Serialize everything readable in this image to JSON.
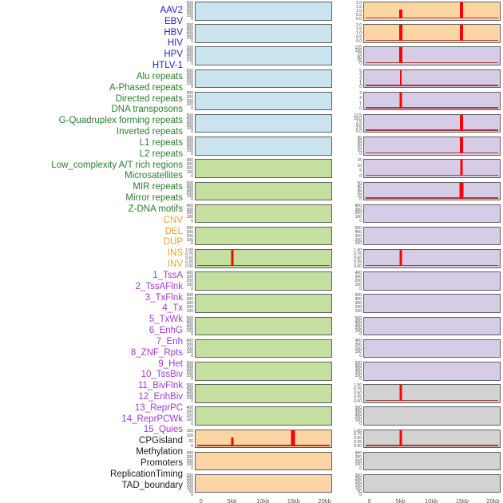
{
  "colors": {
    "label_groups": {
      "virus": "#2121cc",
      "repeat": "#2a7e2a",
      "sv": "#f0a01e",
      "chromatin": "#a437d4",
      "other": "#1a1a1a"
    },
    "fills": {
      "blue": "#c9e4ef",
      "green": "#c5dfa1",
      "orange": "#fcd5a4",
      "purple": "#d6cce6",
      "gray": "#d2d2d2"
    },
    "spike": "#ff0000",
    "baseline": "#a63a3a",
    "box_border": "#5f5f5f",
    "tick_text": "#4a4a4a"
  },
  "chart_data": {
    "type": "line",
    "title": "",
    "layout": "44 feature density panels in 2 columns of 22; shared x-axis 0-20kb; legend off; grid off",
    "x_axis": {
      "ticks": [
        {
          "label": "0",
          "kb": 0
        },
        {
          "label": "5kb",
          "kb": 5
        },
        {
          "label": "10kb",
          "kb": 10
        },
        {
          "label": "15kb",
          "kb": 15
        },
        {
          "label": "20kb",
          "kb": 20
        }
      ],
      "range_kb": [
        0,
        20
      ]
    },
    "panels": [
      {
        "name": "AAV2",
        "group": "virus",
        "column": 1,
        "row": 1,
        "fill": "blue",
        "ylim": [
          0,
          500
        ],
        "yticks": [
          "500",
          "400",
          "300",
          "200",
          "100",
          "0"
        ],
        "baseline": false,
        "spikes": []
      },
      {
        "name": "EBV",
        "group": "virus",
        "column": 1,
        "row": 2,
        "fill": "blue",
        "ylim": [
          0,
          500
        ],
        "yticks": [
          "500",
          "400",
          "300",
          "200",
          "100",
          "0"
        ],
        "baseline": false,
        "spikes": []
      },
      {
        "name": "HBV",
        "group": "virus",
        "column": 1,
        "row": 3,
        "fill": "blue",
        "ylim": [
          0,
          500
        ],
        "yticks": [
          "500",
          "400",
          "300",
          "200",
          "100",
          "0"
        ],
        "baseline": false,
        "spikes": []
      },
      {
        "name": "HIV",
        "group": "virus",
        "column": 1,
        "row": 4,
        "fill": "blue",
        "ylim": [
          0,
          500
        ],
        "yticks": [
          "500",
          "400",
          "300",
          "200",
          "100",
          "0"
        ],
        "baseline": false,
        "spikes": []
      },
      {
        "name": "HPV",
        "group": "virus",
        "column": 1,
        "row": 5,
        "fill": "blue",
        "ylim": [
          0,
          400
        ],
        "yticks": [
          "400",
          "300",
          "200",
          "100",
          "0"
        ],
        "baseline": false,
        "spikes": []
      },
      {
        "name": "HTLV-1",
        "group": "virus",
        "column": 1,
        "row": 6,
        "fill": "blue",
        "ylim": [
          0,
          500
        ],
        "yticks": [
          "500",
          "400",
          "300",
          "200",
          "100",
          "0"
        ],
        "baseline": false,
        "spikes": []
      },
      {
        "name": "Alu repeats",
        "group": "repeat",
        "column": 1,
        "row": 7,
        "fill": "blue",
        "ylim": [
          0,
          500
        ],
        "yticks": [
          "500",
          "400",
          "300",
          "200",
          "100",
          "0"
        ],
        "baseline": false,
        "spikes": []
      },
      {
        "name": "A-Phased repeats",
        "group": "repeat",
        "column": 1,
        "row": 8,
        "fill": "green",
        "ylim": [
          0,
          400
        ],
        "yticks": [
          "400",
          "300",
          "200",
          "100",
          "0"
        ],
        "baseline": false,
        "spikes": []
      },
      {
        "name": "Directed repeats",
        "group": "repeat",
        "column": 1,
        "row": 9,
        "fill": "green",
        "ylim": [
          0,
          500
        ],
        "yticks": [
          "500",
          "400",
          "300",
          "200",
          "100",
          "0"
        ],
        "baseline": false,
        "spikes": []
      },
      {
        "name": "DNA transposons",
        "group": "repeat",
        "column": 1,
        "row": 10,
        "fill": "green",
        "ylim": [
          0,
          400
        ],
        "yticks": [
          "400",
          "300",
          "200",
          "100",
          "0"
        ],
        "baseline": false,
        "spikes": []
      },
      {
        "name": "G-Quadruplex forming repeats",
        "group": "repeat",
        "column": 1,
        "row": 11,
        "fill": "green",
        "ylim": [
          0,
          400
        ],
        "yticks": [
          "400",
          "300",
          "200",
          "100",
          "0"
        ],
        "baseline": false,
        "spikes": []
      },
      {
        "name": "Inverted repeats",
        "group": "repeat",
        "column": 1,
        "row": 12,
        "fill": "green",
        "ylim": [
          0,
          1
        ],
        "yticks": [
          "1.00",
          "0.75",
          "0.50",
          "0.25",
          "0.00"
        ],
        "baseline": true,
        "spikes": [
          {
            "x_kb": 5,
            "value": 1.0,
            "frac": 1.0,
            "w": 3
          }
        ]
      },
      {
        "name": "L1 repeats",
        "group": "repeat",
        "column": 1,
        "row": 13,
        "fill": "green",
        "ylim": [
          0,
          400
        ],
        "yticks": [
          "400",
          "300",
          "200",
          "100",
          "0"
        ],
        "baseline": false,
        "spikes": []
      },
      {
        "name": "L2 repeats",
        "group": "repeat",
        "column": 1,
        "row": 14,
        "fill": "green",
        "ylim": [
          0,
          500
        ],
        "yticks": [
          "500",
          "400",
          "300",
          "200",
          "100"
        ],
        "baseline": false,
        "spikes": []
      },
      {
        "name": "Low_complexity A/T rich regions",
        "group": "repeat",
        "column": 1,
        "row": 15,
        "fill": "green",
        "ylim": [
          0,
          500
        ],
        "yticks": [
          "500",
          "400",
          "300",
          "200",
          "100",
          "0"
        ],
        "baseline": false,
        "spikes": []
      },
      {
        "name": "Microsatellites",
        "group": "repeat",
        "column": 1,
        "row": 16,
        "fill": "green",
        "ylim": [
          0,
          400
        ],
        "yticks": [
          "400",
          "300",
          "200",
          "100",
          "0"
        ],
        "baseline": false,
        "spikes": []
      },
      {
        "name": "MIR repeats",
        "group": "repeat",
        "column": 1,
        "row": 17,
        "fill": "green",
        "ylim": [
          0,
          500
        ],
        "yticks": [
          "500",
          "400",
          "300",
          "200",
          "100",
          "0"
        ],
        "baseline": false,
        "spikes": []
      },
      {
        "name": "Mirror repeats",
        "group": "repeat",
        "column": 1,
        "row": 18,
        "fill": "green",
        "ylim": [
          0,
          500
        ],
        "yticks": [
          "500",
          "400",
          "300",
          "200",
          "100",
          "0"
        ],
        "baseline": false,
        "spikes": []
      },
      {
        "name": "Z-DNA motifs",
        "group": "repeat",
        "column": 1,
        "row": 19,
        "fill": "green",
        "ylim": [
          0,
          400
        ],
        "yticks": [
          "400",
          "300",
          "200",
          "100",
          "0"
        ],
        "baseline": false,
        "spikes": []
      },
      {
        "name": "CNV",
        "group": "sv",
        "column": 1,
        "row": 20,
        "fill": "orange",
        "ylim": [
          0,
          150
        ],
        "yticks": [
          "150",
          "100",
          "50",
          "0"
        ],
        "baseline": true,
        "spikes": [
          {
            "x_kb": 5,
            "value": 75,
            "frac": 0.5,
            "w": 3
          },
          {
            "x_kb": 15,
            "value": 150,
            "frac": 1.0,
            "w": 5
          }
        ]
      },
      {
        "name": "DEL",
        "group": "sv",
        "column": 1,
        "row": 21,
        "fill": "orange",
        "ylim": [
          0,
          400
        ],
        "yticks": [
          "400",
          "300",
          "200",
          "100",
          "0"
        ],
        "baseline": false,
        "spikes": []
      },
      {
        "name": "DUP",
        "group": "sv",
        "column": 1,
        "row": 22,
        "fill": "orange",
        "ylim": [
          0,
          300
        ],
        "yticks": [
          "300",
          "250",
          "200",
          "150",
          "100",
          "50",
          "0"
        ],
        "baseline": false,
        "spikes": []
      },
      {
        "name": "INS",
        "group": "sv",
        "column": 2,
        "row": 1,
        "fill": "orange",
        "ylim": [
          0,
          2
        ],
        "yticks": [
          "2.0",
          "1.5",
          "1.0",
          "0.5",
          "0.0"
        ],
        "baseline": true,
        "spikes": [
          {
            "x_kb": 5,
            "value": 1.0,
            "frac": 0.5,
            "w": 4
          },
          {
            "x_kb": 15,
            "value": 2.0,
            "frac": 1.0,
            "w": 4
          }
        ]
      },
      {
        "name": "INV",
        "group": "sv",
        "column": 2,
        "row": 2,
        "fill": "orange",
        "ylim": [
          0,
          2
        ],
        "yticks": [
          "2.0",
          "1.5",
          "1.0",
          "0.5",
          "0.0"
        ],
        "baseline": true,
        "spikes": [
          {
            "x_kb": 5,
            "value": 2.0,
            "frac": 1.0,
            "w": 4
          },
          {
            "x_kb": 15,
            "value": 2.0,
            "frac": 1.0,
            "w": 4
          }
        ]
      },
      {
        "name": "1_TssA",
        "group": "chromatin",
        "column": 2,
        "row": 3,
        "fill": "purple",
        "ylim": [
          0,
          125
        ],
        "yticks": [
          "125",
          "100",
          "75",
          "50",
          "25",
          "0"
        ],
        "baseline": true,
        "spikes": [
          {
            "x_kb": 5,
            "value": 125,
            "frac": 1.0,
            "w": 4
          }
        ]
      },
      {
        "name": "2_TssAFlnk",
        "group": "chromatin",
        "column": 2,
        "row": 4,
        "fill": "purple",
        "ylim": [
          0,
          5
        ],
        "yticks": [
          "5",
          "4",
          "3",
          "2",
          "1",
          "0"
        ],
        "baseline": true,
        "spikes": [
          {
            "x_kb": 5,
            "value": 5,
            "frac": 1.0,
            "w": 2
          }
        ]
      },
      {
        "name": "3_TxFlnk",
        "group": "chromatin",
        "column": 2,
        "row": 5,
        "fill": "purple",
        "ylim": [
          0,
          3
        ],
        "yticks": [
          "3",
          "2",
          "1",
          "0"
        ],
        "baseline": true,
        "spikes": [
          {
            "x_kb": 5,
            "value": 3,
            "frac": 1.0,
            "w": 3
          }
        ]
      },
      {
        "name": "4_Tx",
        "group": "chromatin",
        "column": 2,
        "row": 6,
        "fill": "purple",
        "ylim": [
          0,
          12.5
        ],
        "yticks": [
          "12.5",
          "10.0",
          "7.5",
          "5.0",
          "2.5",
          "0.0"
        ],
        "baseline": true,
        "spikes": [
          {
            "x_kb": 15,
            "value": 12.5,
            "frac": 1.0,
            "w": 4
          }
        ]
      },
      {
        "name": "5_TxWk",
        "group": "chromatin",
        "column": 2,
        "row": 7,
        "fill": "purple",
        "ylim": [
          0,
          50
        ],
        "yticks": [
          "50",
          "40",
          "30",
          "20",
          "10",
          "0"
        ],
        "baseline": true,
        "spikes": [
          {
            "x_kb": 15,
            "value": 50,
            "frac": 1.0,
            "w": 4
          }
        ]
      },
      {
        "name": "6_EnhG",
        "group": "chromatin",
        "column": 2,
        "row": 8,
        "fill": "purple",
        "ylim": [
          0,
          15
        ],
        "yticks": [
          "15",
          "10",
          "5",
          "0"
        ],
        "baseline": true,
        "spikes": [
          {
            "x_kb": 15,
            "value": 15,
            "frac": 1.0,
            "w": 3
          }
        ]
      },
      {
        "name": "7_Enh",
        "group": "chromatin",
        "column": 2,
        "row": 9,
        "fill": "purple",
        "ylim": [
          0,
          50
        ],
        "yticks": [
          "50",
          "40",
          "30",
          "20",
          "10",
          "0"
        ],
        "baseline": true,
        "spikes": [
          {
            "x_kb": 15,
            "value": 50,
            "frac": 1.0,
            "w": 5
          }
        ]
      },
      {
        "name": "8_ZNF_Rpts",
        "group": "chromatin",
        "column": 2,
        "row": 10,
        "fill": "purple",
        "ylim": [
          0,
          400
        ],
        "yticks": [
          "400",
          "300",
          "200",
          "100",
          "0"
        ],
        "baseline": false,
        "spikes": []
      },
      {
        "name": "9_Het",
        "group": "chromatin",
        "column": 2,
        "row": 11,
        "fill": "purple",
        "ylim": [
          0,
          500
        ],
        "yticks": [
          "500",
          "400",
          "300",
          "200",
          "100"
        ],
        "baseline": false,
        "spikes": []
      },
      {
        "name": "10_TssBiv",
        "group": "chromatin",
        "column": 2,
        "row": 12,
        "fill": "purple",
        "ylim": [
          0,
          1
        ],
        "yticks": [
          "1.00",
          "0.75",
          "0.50",
          "0.25",
          "0.00"
        ],
        "baseline": true,
        "spikes": [
          {
            "x_kb": 5,
            "value": 1.0,
            "frac": 1.0,
            "w": 3
          }
        ]
      },
      {
        "name": "11_BivFlnk",
        "group": "chromatin",
        "column": 2,
        "row": 13,
        "fill": "purple",
        "ylim": [
          0,
          400
        ],
        "yticks": [
          "400",
          "300",
          "200",
          "100",
          "0"
        ],
        "baseline": false,
        "spikes": []
      },
      {
        "name": "12_EnhBiv",
        "group": "chromatin",
        "column": 2,
        "row": 14,
        "fill": "purple",
        "ylim": [
          0,
          500
        ],
        "yticks": [
          "500",
          "400",
          "300",
          "200",
          "100"
        ],
        "baseline": false,
        "spikes": []
      },
      {
        "name": "13_ReprPC",
        "group": "chromatin",
        "column": 2,
        "row": 15,
        "fill": "purple",
        "ylim": [
          0,
          500
        ],
        "yticks": [
          "500",
          "400",
          "300",
          "200",
          "100",
          "0"
        ],
        "baseline": false,
        "spikes": []
      },
      {
        "name": "14_ReprPCWk",
        "group": "chromatin",
        "column": 2,
        "row": 16,
        "fill": "purple",
        "ylim": [
          0,
          400
        ],
        "yticks": [
          "400",
          "300",
          "200",
          "100",
          "0"
        ],
        "baseline": false,
        "spikes": []
      },
      {
        "name": "15_Quies",
        "group": "chromatin",
        "column": 2,
        "row": 17,
        "fill": "purple",
        "ylim": [
          0,
          500
        ],
        "yticks": [
          "500",
          "400",
          "300",
          "200",
          "100",
          "0"
        ],
        "baseline": false,
        "spikes": []
      },
      {
        "name": "CPGisland",
        "group": "other",
        "column": 2,
        "row": 18,
        "fill": "gray",
        "ylim": [
          0,
          1
        ],
        "yticks": [
          "1.00",
          "0.75",
          "0.50",
          "0.25",
          "0.00"
        ],
        "baseline": true,
        "spikes": [
          {
            "x_kb": 5,
            "value": 1.0,
            "frac": 1.0,
            "w": 3
          }
        ]
      },
      {
        "name": "Methylation",
        "group": "other",
        "column": 2,
        "row": 19,
        "fill": "gray",
        "ylim": [
          0,
          500
        ],
        "yticks": [
          "500",
          "400",
          "300",
          "200",
          "100",
          "0"
        ],
        "baseline": false,
        "spikes": []
      },
      {
        "name": "Promoters",
        "group": "other",
        "column": 2,
        "row": 20,
        "fill": "gray",
        "ylim": [
          0,
          1
        ],
        "yticks": [
          "1.00",
          "0.75",
          "0.50",
          "0.25",
          "0.00"
        ],
        "baseline": true,
        "spikes": [
          {
            "x_kb": 5,
            "value": 1.0,
            "frac": 1.0,
            "w": 3
          }
        ]
      },
      {
        "name": "ReplicationTiming",
        "group": "other",
        "column": 2,
        "row": 21,
        "fill": "gray",
        "ylim": [
          0,
          400
        ],
        "yticks": [
          "400",
          "300",
          "200",
          "100",
          "0"
        ],
        "baseline": false,
        "spikes": []
      },
      {
        "name": "TAD_boundary",
        "group": "other",
        "column": 2,
        "row": 22,
        "fill": "gray",
        "ylim": [
          0,
          300
        ],
        "yticks": [
          "300",
          "250",
          "200",
          "150",
          "100",
          "50",
          "0"
        ],
        "baseline": false,
        "spikes": []
      }
    ]
  }
}
